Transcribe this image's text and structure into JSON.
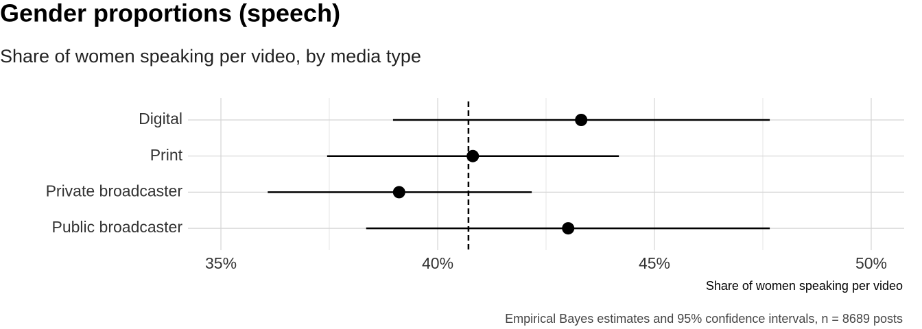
{
  "chart_data": {
    "type": "dot_interval",
    "title": "Gender proportions (speech)",
    "subtitle": "Share of women speaking per video, by media type",
    "x_label": "Share of women speaking per video",
    "caption": "Empirical Bayes estimates and 95% confidence intervals, n = 8689 posts",
    "categories": [
      "Digital",
      "Print",
      "Private broadcaster",
      "Public broadcaster"
    ],
    "values": [
      43.31,
      40.81,
      39.11,
      43.01
    ],
    "lower": [
      38.97,
      37.45,
      36.08,
      38.35
    ],
    "upper": [
      47.66,
      44.18,
      42.17,
      47.66
    ],
    "reference_line": 40.71,
    "color": "#000000",
    "xlim": [
      34.24,
      50.76
    ],
    "xticks": [
      {
        "value": 35,
        "label": "35%"
      },
      {
        "value": 40,
        "label": "40%"
      },
      {
        "value": 45,
        "label": "45%"
      },
      {
        "value": 50,
        "label": "50%"
      }
    ],
    "minor_xticks": [
      37.5,
      42.5,
      47.5
    ],
    "grid": true
  }
}
